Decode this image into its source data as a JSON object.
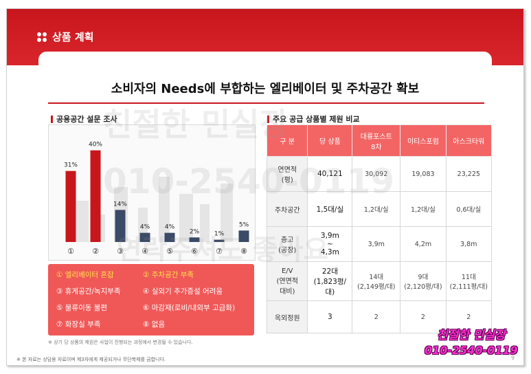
{
  "section": {
    "title": "상품 계획"
  },
  "headline": "소비자의 Needs에 부합하는 엘리베이터 및 주차공간 확보",
  "survey": {
    "title": "공용공간 설문 조사"
  },
  "chart_data": {
    "type": "bar",
    "categories": [
      "①",
      "②",
      "③",
      "④",
      "⑤",
      "⑥",
      "⑦",
      "⑧"
    ],
    "values": [
      31,
      40,
      14,
      4,
      4,
      2,
      1,
      5
    ],
    "value_labels": [
      "31%",
      "40%",
      "14%",
      "4%",
      "4%",
      "2%",
      "1%",
      "5%"
    ],
    "ylim": [
      0,
      45
    ],
    "colors": [
      "#c8161d",
      "#c8161d",
      "#3b4a66",
      "#3b4a66",
      "#3b4a66",
      "#3b4a66",
      "#3b4a66",
      "#3b4a66"
    ],
    "title": "",
    "xlabel": "",
    "ylabel": ""
  },
  "legend_items": [
    "① 엘리베이터 혼잡",
    "② 주차공간 부족",
    "③ 휴게공간/녹지부족",
    "④ 실외기 추가증설 어려움",
    "⑤ 물류이동 불편",
    "⑥ 마감재(로비/내외부 고급화)",
    "⑦ 화장실 부족",
    "⑧ 없음"
  ],
  "left_note": "※ 상기 당 상품의 제원은 사업이 진행되는 과정에서 변경될 수 있습니다.",
  "comparison": {
    "title": "주요 공급 상품별 제원 비교",
    "headers": [
      "구 분",
      "당 상품",
      "대륭포스트\n8차",
      "이티스포럼",
      "아스크타워"
    ],
    "rows": [
      {
        "label": "연면적\n(평)",
        "cells": [
          "40,121",
          "30,092",
          "19,083",
          "23,225"
        ]
      },
      {
        "label": "주차공간",
        "cells": [
          "1,5대/실",
          "1,2대/실",
          "1,2대/실",
          "0,6대/실"
        ]
      },
      {
        "label": "층고\n(공장)",
        "cells": [
          "3,9m\n~\n4,3m",
          "3,9m",
          "4,2m",
          "3,8m"
        ]
      },
      {
        "label": "E/V\n(연면적\n대비)",
        "cells": [
          "22대\n(1,823평/대)",
          "14대\n(2,149평/대)",
          "9대\n(2,120평/대)",
          "11대\n(2,111평/대)"
        ]
      },
      {
        "label": "옥외정원",
        "cells": [
          "3",
          "2",
          "2",
          "2"
        ]
      }
    ]
  },
  "bottom_note": "※ 본 자료는 상담용 자료이며 제3자에게 제공되거나 무단복제를 금합니다.",
  "page_number": "9",
  "watermark": {
    "line1": "친절한 민실장",
    "line2": "010-2540-0119",
    "line3": "연락주셔도 좋아요"
  },
  "promo": {
    "name": "친절한 민실장",
    "phone": "010-2540-0119"
  },
  "colors": {
    "accent": "#c8161d",
    "legend_bg": "#f05858",
    "table_header": "#f36565",
    "highlight": "#ffe14a"
  }
}
